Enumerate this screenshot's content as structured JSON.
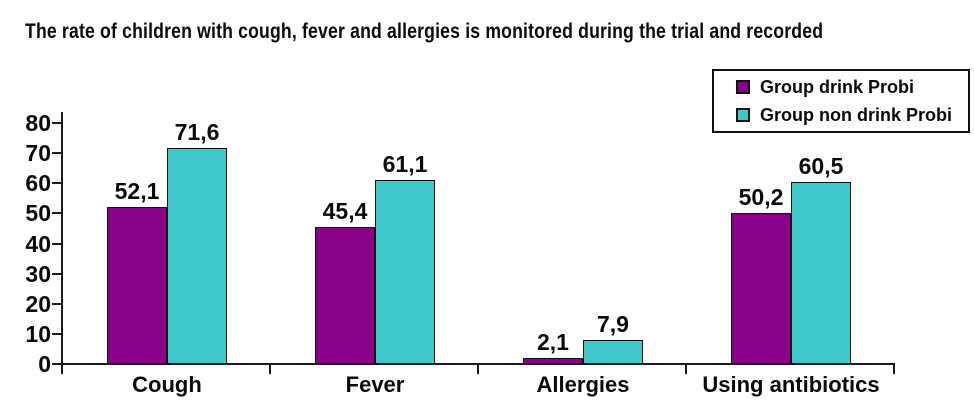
{
  "chart_data": {
    "type": "bar",
    "title": "The rate of children with cough, fever and allergies is monitored during the trial and recorded",
    "categories": [
      "Cough",
      "Fever",
      "Allergies",
      "Using antibiotics"
    ],
    "series": [
      {
        "name": "Group drink Probi",
        "color": "#8A0189",
        "values": [
          52.1,
          45.4,
          2.1,
          50.2
        ]
      },
      {
        "name": "Group non drink Probi",
        "color": "#3EC8CC",
        "values": [
          71.6,
          61.1,
          7.9,
          60.5
        ]
      }
    ],
    "ylim": [
      0,
      80
    ],
    "ytick_step": 10,
    "ytick_labels": [
      "0",
      "10",
      "20",
      "30",
      "40",
      "50",
      "60",
      "70",
      "80"
    ],
    "grid": false,
    "legend_position": "top-right",
    "decimal_separator": ",",
    "colors": {
      "axis": "#1c1c1c",
      "text": "#0a0a0a",
      "bar_border": "#101010",
      "background": "#ffffff"
    }
  }
}
